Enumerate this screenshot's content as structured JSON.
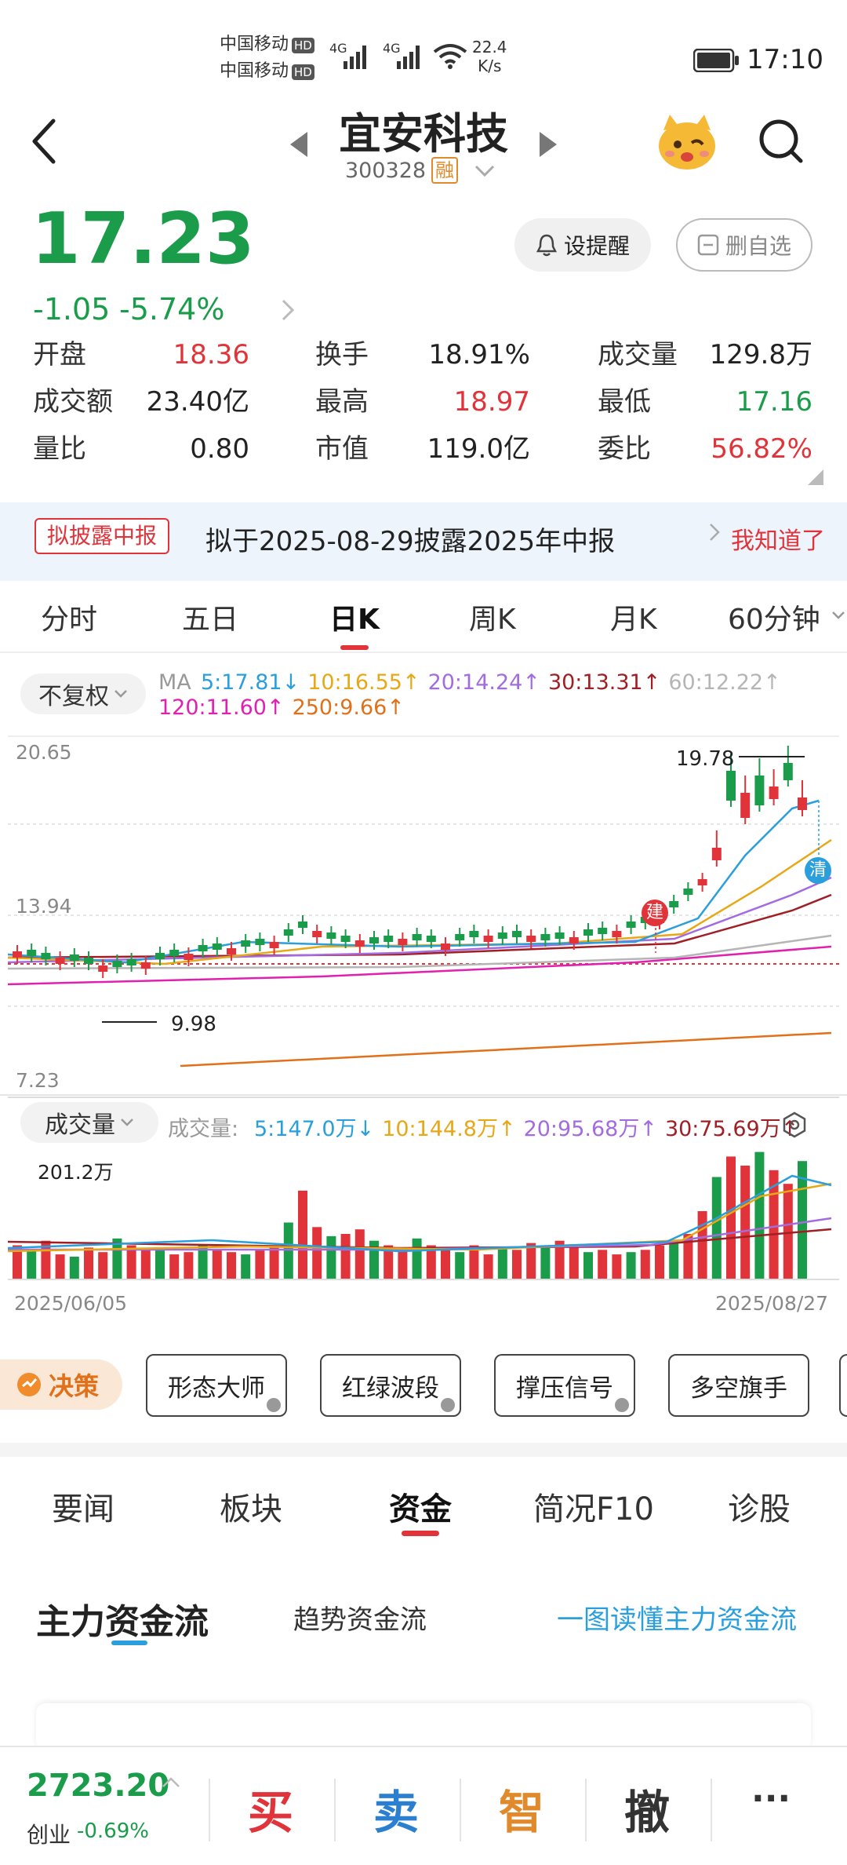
{
  "status_bar": {
    "carrier1": "中国移动",
    "carrier2": "中国移动",
    "hd": "HD",
    "net": "4G",
    "speed": "22.4",
    "speed_unit": "K/s",
    "time": "17:10"
  },
  "header": {
    "name": "宜安科技",
    "code": "300328",
    "margin_badge": "融"
  },
  "quote": {
    "price": "17.23",
    "change": "-1.05",
    "change_pct": "-5.74%",
    "alert_button": "设提醒",
    "remove_watch_button": "删自选"
  },
  "stats": [
    {
      "label": "开盘",
      "value": "18.36",
      "color": "#e0333a"
    },
    {
      "label": "换手",
      "value": "18.91%",
      "color": "#222222"
    },
    {
      "label": "成交量",
      "value": "129.8万",
      "color": "#222222"
    },
    {
      "label": "成交额",
      "value": "23.40亿",
      "color": "#222222"
    },
    {
      "label": "最高",
      "value": "18.97",
      "color": "#e0333a"
    },
    {
      "label": "最低",
      "value": "17.16",
      "color": "#1a9c4a"
    },
    {
      "label": "量比",
      "value": "0.80",
      "color": "#222222"
    },
    {
      "label": "市值",
      "value": "119.0亿",
      "color": "#222222"
    },
    {
      "label": "委比",
      "value": "56.82%",
      "color": "#e0333a"
    }
  ],
  "notice": {
    "tag": "拟披露中报",
    "text": "拟于2025-08-29披露2025年中报",
    "ack": "我知道了"
  },
  "period_tabs": [
    "分时",
    "五日",
    "日K",
    "周K",
    "月K",
    "60分钟"
  ],
  "active_period": "日K",
  "chart": {
    "adjust_select": "不复权",
    "ma_label": "MA",
    "ma_items": [
      {
        "text": "5:17.81↓",
        "color": "#2a9fdc"
      },
      {
        "text": "10:16.55↑",
        "color": "#e6a817"
      },
      {
        "text": "20:14.24↑",
        "color": "#a36be0"
      },
      {
        "text": "30:13.31↑",
        "color": "#a01f25"
      },
      {
        "text": "60:12.22↑",
        "color": "#b5b5b5"
      }
    ],
    "ma_items2": [
      {
        "text": "120:11.60↑",
        "color": "#e020b0"
      },
      {
        "text": "250:9.66↑",
        "color": "#e0701a"
      }
    ],
    "y_top": "20.65",
    "y_mid": "13.94",
    "y_bottom": "7.23",
    "high_mark": "19.78",
    "low_mark": "9.98",
    "build_badge": "建",
    "clear_badge": "清",
    "volume_select": "成交量",
    "volume_prefix": "成交量:",
    "vol_items": [
      {
        "text": "5:147.0万↓",
        "color": "#2a9fdc"
      },
      {
        "text": "10:144.8万↑",
        "color": "#e6a817"
      },
      {
        "text": "20:95.68万↑",
        "color": "#a36be0"
      },
      {
        "text": "30:75.69万↑",
        "color": "#a01f25"
      }
    ],
    "vol_max": "201.2万",
    "date_start": "2025/06/05",
    "date_end": "2025/08/27"
  },
  "chart_data": {
    "type": "candlestick",
    "x_range": [
      "2025/06/05",
      "2025/08/27"
    ],
    "ylim": [
      7.23,
      20.65
    ],
    "labeled_high": 19.78,
    "labeled_low": 9.98,
    "volume_max": "201.2万"
  },
  "decision": {
    "label": "决策",
    "buttons": [
      "形态大师",
      "红绿波段",
      "撑压信号",
      "多空旗手"
    ]
  },
  "info_tabs": [
    "要闻",
    "板块",
    "资金",
    "简况F10",
    "诊股"
  ],
  "active_info_tab": "资金",
  "fund_flow": {
    "tab_main": "主力资金流",
    "tab_trend": "趋势资金流",
    "link": "一图读懂主力资金流"
  },
  "bottom_bar": {
    "index_value": "2723.20",
    "index_name": "创业",
    "index_change": "-0.69%",
    "buy": "买",
    "sell": "卖",
    "smart": "智",
    "cancel": "撤",
    "more": "···"
  },
  "colors": {
    "up": "#e0333a",
    "down": "#1a9c4a",
    "accent": "#e0333a",
    "link": "#2a9fdc"
  }
}
